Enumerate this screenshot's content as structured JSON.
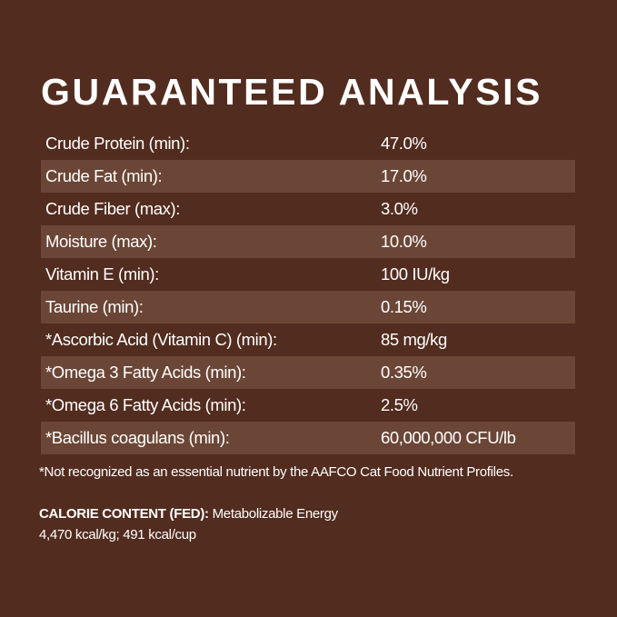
{
  "title": "GUARANTEED ANALYSIS",
  "rows": [
    {
      "label": "Crude Protein (min):",
      "value": "47.0%"
    },
    {
      "label": "Crude Fat (min):",
      "value": "17.0%"
    },
    {
      "label": "Crude Fiber (max):",
      "value": "3.0%"
    },
    {
      "label": "Moisture (max):",
      "value": "10.0%"
    },
    {
      "label": "Vitamin E (min):",
      "value": "100 IU/kg"
    },
    {
      "label": "Taurine (min):",
      "value": "0.15%"
    },
    {
      "label": "*Ascorbic Acid (Vitamin C) (min):",
      "value": "85 mg/kg"
    },
    {
      "label": "*Omega 3 Fatty Acids (min):",
      "value": "0.35%"
    },
    {
      "label": "*Omega 6 Fatty Acids (min):",
      "value": "2.5%"
    },
    {
      "label": "*Bacillus coagulans (min):",
      "value": "60,000,000 CFU/lb"
    }
  ],
  "footnote": "*Not recognized as an essential nutrient by the AAFCO Cat Food Nutrient Profiles.",
  "calorie": {
    "heading": "CALORIE CONTENT (FED):",
    "text": "Metabolizable Energy",
    "values": "4,470 kcal/kg; 491 kcal/cup"
  },
  "colors": {
    "background": "#522c1f",
    "stripe": "#6b4636",
    "text": "#ffffff"
  }
}
